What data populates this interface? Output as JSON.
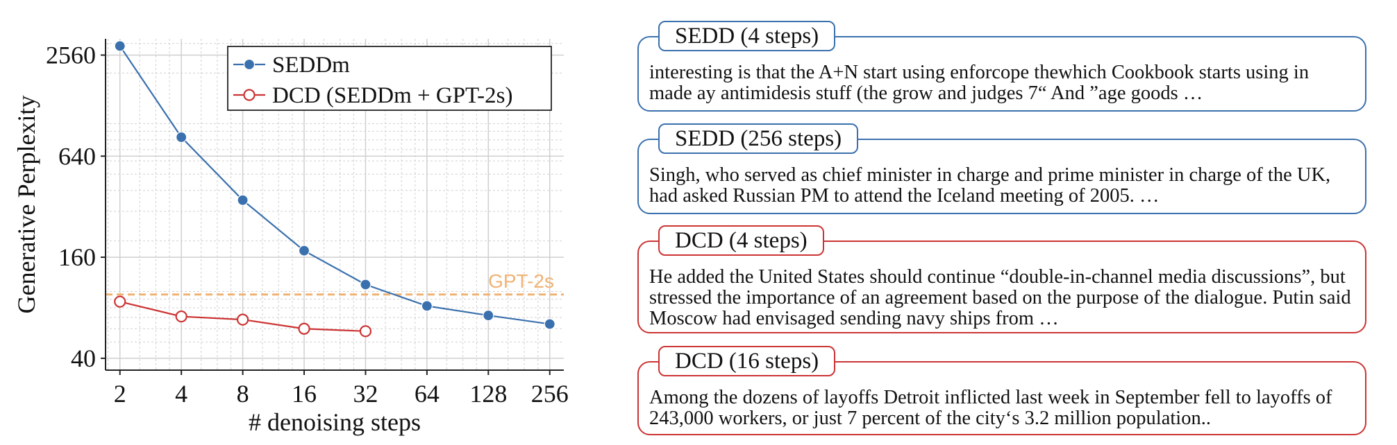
{
  "chart_data": {
    "type": "line",
    "xlabel": "# denoising steps",
    "ylabel": "Generative Perplexity",
    "x_scale": "log2",
    "y_scale": "log",
    "x_ticks": [
      2,
      4,
      8,
      16,
      32,
      64,
      128,
      256
    ],
    "y_ticks": [
      40,
      160,
      640,
      2560
    ],
    "x_tick_labels": [
      "2",
      "4",
      "8",
      "16",
      "32",
      "64",
      "128",
      "256"
    ],
    "y_tick_labels": [
      "40",
      "160",
      "640",
      "2560"
    ],
    "xlim": [
      1.7,
      300
    ],
    "ylim": [
      34,
      3200
    ],
    "grid": true,
    "legend_position": "top-right",
    "series": [
      {
        "name": "SEDDm",
        "color": "#3a70ad",
        "marker": "filled-circle",
        "x": [
          2,
          4,
          8,
          16,
          32,
          64,
          128,
          256
        ],
        "y": [
          2900,
          830,
          350,
          175,
          110,
          82,
          72,
          64
        ]
      },
      {
        "name": "DCD (SEDDm + GPT-2s)",
        "color": "#cc3333",
        "marker": "open-circle",
        "x": [
          2,
          4,
          8,
          16,
          32
        ],
        "y": [
          87,
          71,
          68,
          60,
          58
        ]
      }
    ],
    "reference_lines": [
      {
        "label": "GPT-2s",
        "y": 96,
        "color": "#f0b274",
        "style": "dashed"
      }
    ]
  },
  "samples": [
    {
      "title": "SEDD (4 steps)",
      "color": "#3a70ad",
      "text": "interesting is that the A+N start using enforcope thewhich Cookbook starts using in made ay antimidesis stuff (the grow and judges 7“ And ”age goods …"
    },
    {
      "title": "SEDD (256 steps)",
      "color": "#3a70ad",
      "text": "Singh, who served as chief minister in charge and prime minister in charge of the UK, had asked Russian PM to attend the Iceland meeting of 2005. …"
    },
    {
      "title": "DCD (4 steps)",
      "color": "#cc3333",
      "text": "He added the United States should continue “double-in-channel media discussions”, but stressed the importance of an agreement based on the purpose of the dialogue. Putin said Moscow had envisaged sending navy ships from …"
    },
    {
      "title": "DCD (16 steps)",
      "color": "#cc3333",
      "text": "Among the dozens of layoffs Detroit inflicted last week in September fell to layoffs of 243,000 workers, or just 7 percent of the city‘s 3.2 million population.."
    }
  ]
}
